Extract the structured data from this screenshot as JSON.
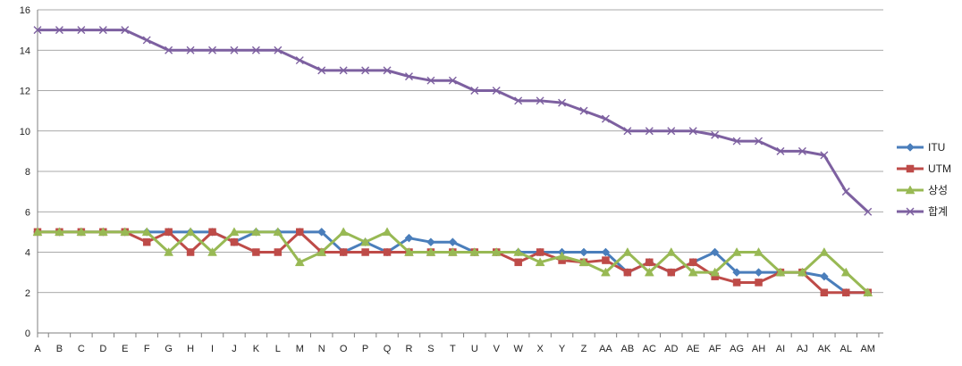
{
  "chart_data": {
    "type": "line",
    "categories": [
      "A",
      "B",
      "C",
      "D",
      "E",
      "F",
      "G",
      "H",
      "I",
      "J",
      "K",
      "L",
      "M",
      "N",
      "O",
      "P",
      "Q",
      "R",
      "S",
      "T",
      "U",
      "V",
      "W",
      "X",
      "Y",
      "Z",
      "AA",
      "AB",
      "AC",
      "AD",
      "AE",
      "AF",
      "AG",
      "AH",
      "AI",
      "AJ",
      "AK",
      "AL",
      "AM"
    ],
    "ylim": [
      0,
      16
    ],
    "yticks": [
      0,
      2,
      4,
      6,
      8,
      10,
      12,
      14,
      16
    ],
    "grid": true,
    "legend_position": "right",
    "series": [
      {
        "name": "ITU",
        "color": "#4a7ebb",
        "marker": "diamond",
        "values": [
          5,
          5,
          5,
          5,
          5,
          5,
          5,
          5,
          5,
          4.5,
          5,
          5,
          5,
          5,
          4,
          4.5,
          4,
          4.7,
          4.5,
          4.5,
          4,
          4,
          4,
          4,
          4,
          4,
          4,
          3,
          3.5,
          3,
          3.5,
          4,
          3,
          3,
          3,
          3,
          2.8,
          2,
          2
        ]
      },
      {
        "name": "UTM",
        "color": "#be4b48",
        "marker": "square",
        "values": [
          5,
          5,
          5,
          5,
          5,
          4.5,
          5,
          4,
          5,
          4.5,
          4,
          4,
          5,
          4,
          4,
          4,
          4,
          4,
          4,
          4,
          4,
          4,
          3.5,
          4,
          3.6,
          3.5,
          3.6,
          3,
          3.5,
          3,
          3.5,
          2.8,
          2.5,
          2.5,
          3,
          3,
          2,
          2,
          2
        ]
      },
      {
        "name": "상성",
        "color": "#98b954",
        "marker": "triangle",
        "values": [
          5,
          5,
          5,
          5,
          5,
          5,
          4,
          5,
          4,
          5,
          5,
          5,
          3.5,
          4,
          5,
          4.5,
          5,
          4,
          4,
          4,
          4,
          4,
          4,
          3.5,
          3.8,
          3.5,
          3,
          4,
          3,
          4,
          3,
          3,
          4,
          4,
          3,
          3,
          4,
          3,
          2
        ]
      },
      {
        "name": "합계",
        "color": "#7d60a0",
        "marker": "x",
        "values": [
          15,
          15,
          15,
          15,
          15,
          14.5,
          14,
          14,
          14,
          14,
          14,
          14,
          13.5,
          13,
          13,
          13,
          13,
          12.7,
          12.5,
          12.5,
          12,
          12,
          11.5,
          11.5,
          11.4,
          11,
          10.6,
          10,
          10,
          10,
          10,
          9.8,
          9.5,
          9.5,
          9,
          9,
          8.8,
          7,
          6
        ]
      }
    ]
  }
}
